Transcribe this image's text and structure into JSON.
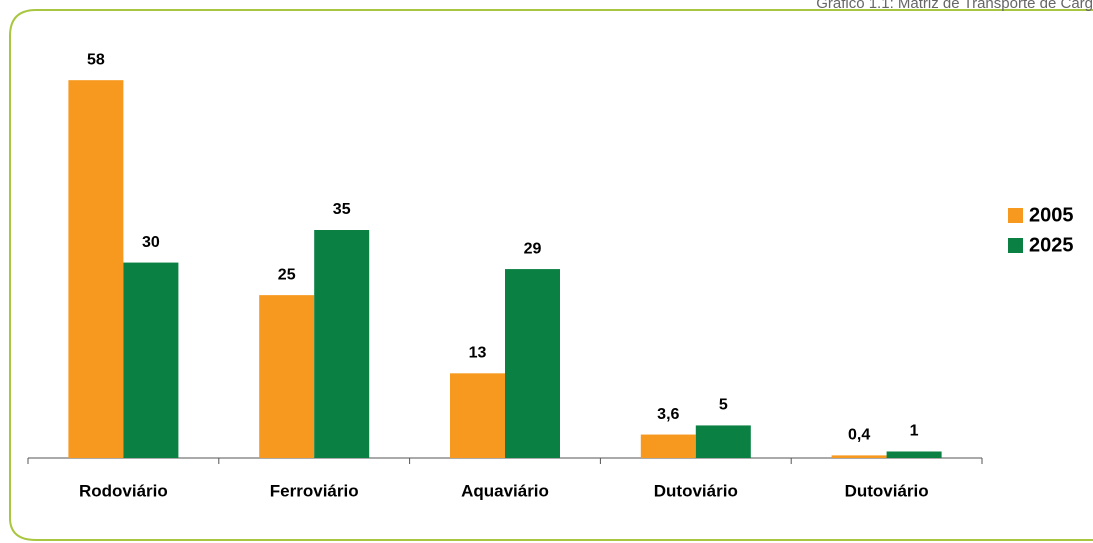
{
  "chart_data": {
    "type": "bar",
    "title": "Gráfico 1.1: Matriz de Transporte de Carg",
    "categories": [
      "Rodoviário",
      "Ferroviário",
      "Aquaviário",
      "Dutoviário",
      "Dutoviário"
    ],
    "series": [
      {
        "name": "2005",
        "color": "#f7991e",
        "values": [
          58,
          25,
          13,
          3.6,
          0.4
        ],
        "value_labels": [
          "58",
          "25",
          "13",
          "3,6",
          "0,4"
        ]
      },
      {
        "name": "2025",
        "color": "#0a8043",
        "values": [
          30,
          35,
          29,
          5,
          1
        ]
      }
    ],
    "ylim": [
      0,
      70
    ],
    "legend": "right"
  }
}
